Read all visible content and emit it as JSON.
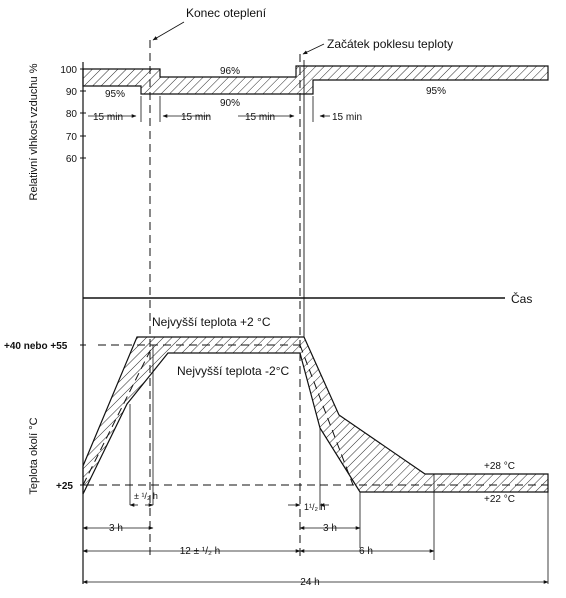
{
  "humidity": {
    "axis_label": "Relativní vlhkost vzduchu %",
    "ticks": [
      "100",
      "90",
      "80",
      "70",
      "60"
    ],
    "band_labels": {
      "p95_left": "95%",
      "p96": "96%",
      "p90": "90%",
      "p95_right": "95%"
    },
    "interval_labels": [
      "15 min",
      "15 min",
      "15 min",
      "15 min"
    ]
  },
  "annotations": {
    "end_heating": "Konec oteplení",
    "start_temp_drop": "Začátek poklesu teploty"
  },
  "time_axis_label": "Čas",
  "temperature": {
    "axis_label": "Teplota okolí °C",
    "tick_high": "+40 nebo +55",
    "tick_low": "+25",
    "upper_curve_label": "Nejvyšší teplota +2 °C",
    "lower_curve_label": "Nejvyšší teplota -2°C",
    "right_upper_label": "+28 °C",
    "right_lower_label": "+22 °C"
  },
  "tolerances": {
    "left": "± ¹/₂ h",
    "right": "1¹/₂ h"
  },
  "durations": {
    "d1": "3 h",
    "d2": "12 ± ¹/₂ h",
    "d3": "3 h",
    "d4": "6 h",
    "d5": "24 h"
  }
}
